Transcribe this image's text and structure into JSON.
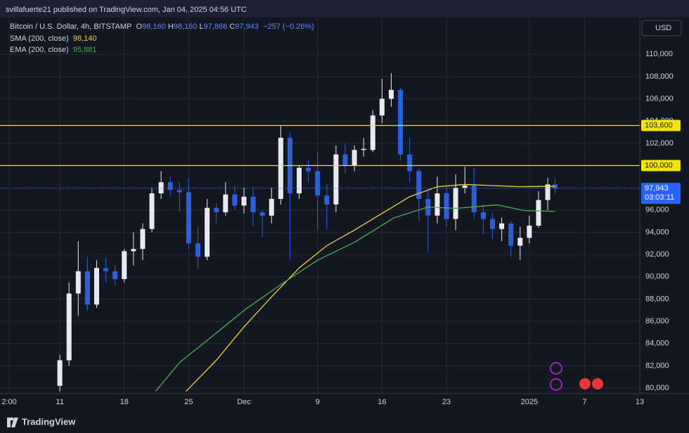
{
  "header": {
    "publisher": "svillafuerte21 published on TradingView.com, Jan 04, 2025 04:56 UTC",
    "footer": "TradingView",
    "currency": "USD"
  },
  "legend": {
    "symbol": "Bitcoin / U.S. Dollar, 4h, BITSTAMP",
    "o_key": "O",
    "o": {
      "value": 98160,
      "label": "98,160"
    },
    "h_key": "H",
    "h": {
      "value": 98160,
      "label": "98,160"
    },
    "l_key": "L",
    "l": {
      "value": 97866,
      "label": "97,866"
    },
    "c_key": "C",
    "c": {
      "value": 97943,
      "label": "97,943"
    },
    "change": "−257 (−0.26%)",
    "sma": {
      "value": 98140,
      "label": "98,140"
    },
    "ema": {
      "value": 95881,
      "label": "95,881"
    }
  },
  "chart_data": {
    "type": "candlestick",
    "up_color": "#e8eaf0",
    "down_color": "#2f5fd8",
    "grid": true,
    "xlim": [
      4.5,
      74
    ],
    "ylim": [
      79500,
      113300
    ],
    "xticks": [
      {
        "value": 5.5,
        "label": "2:00"
      },
      {
        "value": 11,
        "label": "11"
      },
      {
        "value": 18,
        "label": "18"
      },
      {
        "value": 25,
        "label": "25"
      },
      {
        "value": 31,
        "label": "Dec"
      },
      {
        "value": 39,
        "label": "9"
      },
      {
        "value": 46,
        "label": "16"
      },
      {
        "value": 53,
        "label": "23"
      },
      {
        "value": 62,
        "label": "2025"
      },
      {
        "value": 68,
        "label": "7"
      },
      {
        "value": 74,
        "label": "13"
      }
    ],
    "yticks": [
      {
        "value": 80000,
        "label": "80,000"
      },
      {
        "value": 82000,
        "label": "82,000"
      },
      {
        "value": 84000,
        "label": "84,000"
      },
      {
        "value": 86000,
        "label": "86,000"
      },
      {
        "value": 88000,
        "label": "88,000"
      },
      {
        "value": 90000,
        "label": "90,000"
      },
      {
        "value": 92000,
        "label": "92,000"
      },
      {
        "value": 94000,
        "label": "94,000"
      },
      {
        "value": 96000,
        "label": "96,000"
      },
      {
        "value": 98000,
        "label": "98,000"
      },
      {
        "value": 100000,
        "label": "100,000"
      },
      {
        "value": 102000,
        "label": "102,000"
      },
      {
        "value": 104000,
        "label": "104,000"
      },
      {
        "value": 106000,
        "label": "106,000"
      },
      {
        "value": 108000,
        "label": "108,000"
      },
      {
        "value": 110000,
        "label": "110,000"
      }
    ],
    "candles": {
      "x": [
        11,
        12,
        13,
        14,
        15,
        16,
        17,
        18,
        19,
        20,
        21,
        22,
        23,
        24,
        25,
        26,
        27,
        28,
        29,
        30,
        31,
        32,
        33,
        34,
        35,
        36,
        37,
        38,
        39,
        40,
        41,
        42,
        43,
        44,
        45,
        46,
        47,
        48,
        49,
        50,
        51,
        52,
        53,
        54,
        55,
        56,
        57,
        58,
        59,
        60,
        61,
        62,
        63,
        64,
        64.8
      ],
      "open": [
        80200,
        82500,
        88500,
        90500,
        87500,
        90800,
        90500,
        89800,
        92300,
        92500,
        94300,
        97500,
        98500,
        97800,
        97600,
        93000,
        91800,
        96200,
        95800,
        97400,
        96400,
        97200,
        95800,
        95500,
        97000,
        102500,
        97500,
        99800,
        99500,
        97300,
        96500,
        101000,
        100000,
        101400,
        101400,
        104500,
        106000,
        106800,
        101000,
        99500,
        97000,
        95500,
        97500,
        95200,
        98000,
        98200,
        95800,
        95200,
        94300,
        94800,
        92800,
        93500,
        94600,
        96900,
        98300
      ],
      "high": [
        83000,
        89500,
        93200,
        91800,
        91500,
        91700,
        91000,
        92500,
        94000,
        94800,
        98000,
        99500,
        99000,
        98500,
        98900,
        94500,
        97000,
        96600,
        98500,
        98200,
        98000,
        98100,
        96000,
        98000,
        103600,
        103000,
        100000,
        100500,
        101200,
        98300,
        101800,
        102000,
        101800,
        102500,
        105000,
        107800,
        108300,
        107000,
        102500,
        99700,
        97800,
        99000,
        98000,
        99200,
        99900,
        99800,
        96500,
        95700,
        95300,
        95000,
        94500,
        95500,
        97700,
        98900,
        98800
      ],
      "low": [
        79700,
        82000,
        86500,
        87000,
        87200,
        89500,
        89200,
        89500,
        91000,
        91500,
        94000,
        97000,
        97200,
        95800,
        92500,
        90700,
        91500,
        94800,
        95500,
        96000,
        95700,
        94500,
        93600,
        94800,
        96500,
        91500,
        97000,
        98500,
        94200,
        94300,
        95800,
        99300,
        99500,
        100800,
        101200,
        103800,
        105300,
        100500,
        98500,
        95000,
        92200,
        94800,
        94500,
        94200,
        97500,
        95200,
        93800,
        93400,
        93200,
        91800,
        91500,
        93000,
        94400,
        96000,
        97500
      ],
      "close": [
        82500,
        88500,
        90500,
        87500,
        90800,
        90500,
        89800,
        92300,
        92500,
        94300,
        97500,
        98500,
        97800,
        97600,
        93000,
        91800,
        96200,
        95800,
        97400,
        96400,
        97200,
        95800,
        95500,
        97000,
        102500,
        97500,
        99800,
        99500,
        97300,
        96500,
        101000,
        100000,
        101400,
        101500,
        104500,
        106000,
        106800,
        101000,
        99500,
        97000,
        95500,
        97500,
        95200,
        98000,
        98200,
        95800,
        95200,
        94300,
        94800,
        92800,
        93500,
        94600,
        96900,
        98300,
        97943
      ]
    },
    "series": [
      {
        "name": "SMA (200, close)",
        "color": "#f2d03b",
        "x": [
          24.7,
          28,
          31,
          34,
          37,
          40,
          43,
          46,
          49,
          52,
          55,
          58,
          61,
          64.8
        ],
        "values": [
          79700,
          82500,
          85500,
          88200,
          90800,
          92800,
          94200,
          95700,
          97200,
          98100,
          98300,
          98200,
          98100,
          98140
        ]
      },
      {
        "name": "EMA (200, close)",
        "color": "#4caf50",
        "x": [
          21.4,
          24,
          27.4,
          31.2,
          35,
          39,
          43,
          47.3,
          51,
          54,
          58.5,
          61.5,
          64.8
        ],
        "values": [
          79700,
          82300,
          84550,
          87100,
          89300,
          91500,
          93100,
          95300,
          96270,
          96150,
          96460,
          95950,
          95881
        ]
      }
    ],
    "levels": [
      {
        "value": 103600,
        "label": "103,600"
      },
      {
        "value": 100000,
        "label": "100,000"
      }
    ],
    "level_color": "#f2e600",
    "last_price": {
      "value": 97943,
      "label": "97,943",
      "countdown": "03:03:11"
    },
    "last_color": "#2962ff"
  }
}
